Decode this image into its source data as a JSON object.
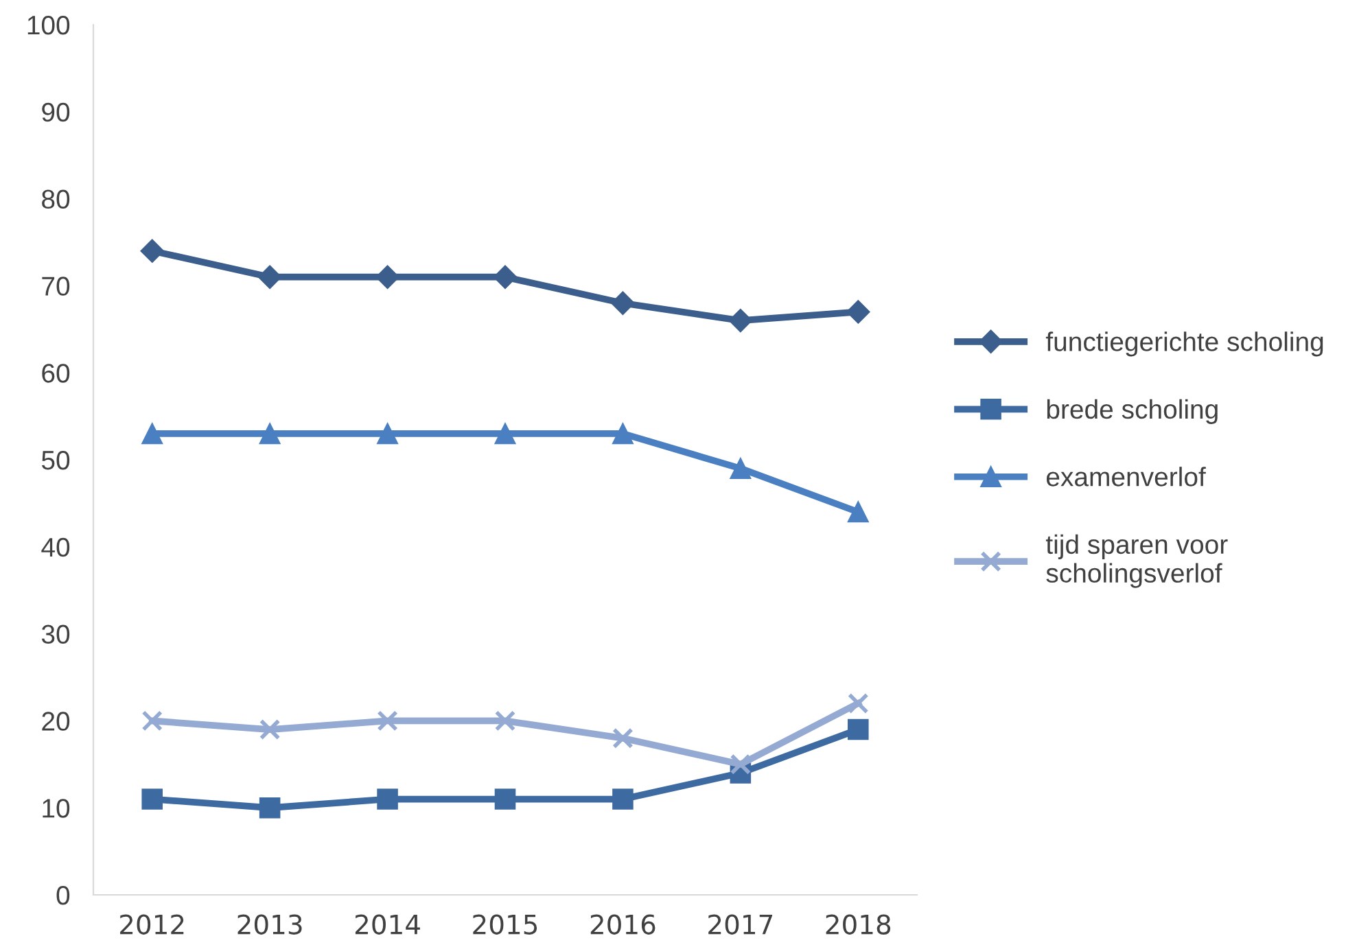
{
  "chart_data": {
    "type": "line",
    "categories": [
      "2012",
      "2013",
      "2014",
      "2015",
      "2016",
      "2017",
      "2018"
    ],
    "series": [
      {
        "name": "functiegerichte scholing",
        "color": "#3b5e8c",
        "marker": "diamond",
        "values": [
          74,
          71,
          71,
          71,
          68,
          66,
          67
        ]
      },
      {
        "name": "brede scholing",
        "color": "#3e6aa2",
        "marker": "square",
        "values": [
          11,
          10,
          11,
          11,
          11,
          14,
          19
        ]
      },
      {
        "name": "examenverlof",
        "color": "#4a7fc1",
        "marker": "triangle",
        "values": [
          53,
          53,
          53,
          53,
          53,
          49,
          44
        ]
      },
      {
        "name": "tijd sparen voor\nscholingsverlof",
        "color": "#95aad3",
        "marker": "cross",
        "values": [
          20,
          19,
          20,
          20,
          18,
          15,
          22
        ]
      }
    ],
    "ylim": [
      0,
      100
    ],
    "yticks": [
      0,
      10,
      20,
      30,
      40,
      50,
      60,
      70,
      80,
      90,
      100
    ],
    "grid": false,
    "legend": "right",
    "line_style": "solid"
  }
}
